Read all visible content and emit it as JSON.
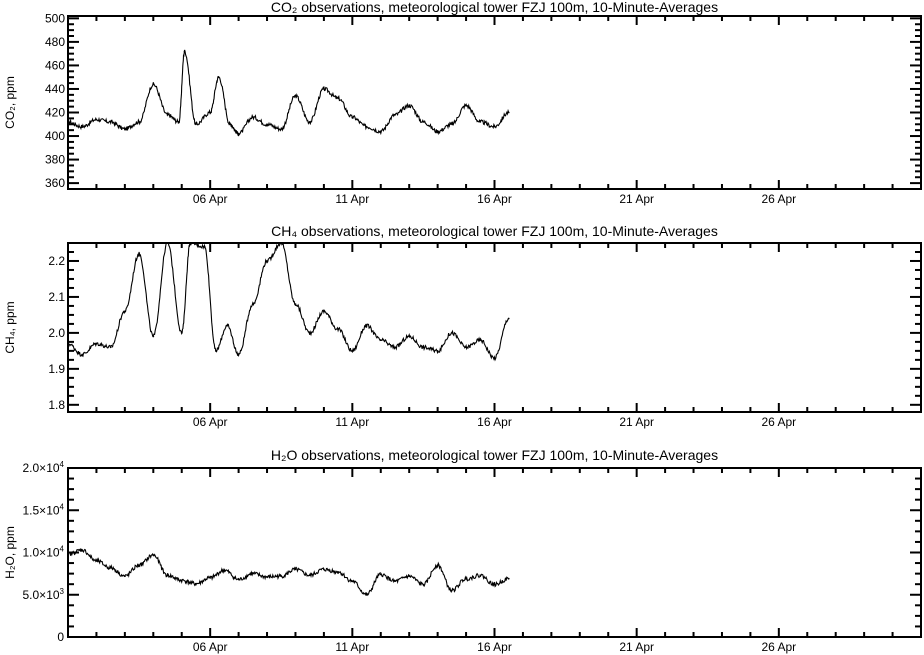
{
  "chart_data": [
    {
      "type": "line",
      "title": "CO₂ observations, meteorological tower FZJ 100m, 10-Minute-Averages",
      "ylabel": "CO₂, ppm",
      "xlabel": "",
      "x_ticks": [
        "06 Apr",
        "11 Apr",
        "16 Apr",
        "21 Apr",
        "26 Apr"
      ],
      "y_ticks": [
        "360",
        "380",
        "400",
        "420",
        "440",
        "460",
        "480",
        "500"
      ],
      "xlim_days": [
        1,
        31
      ],
      "ylim": [
        355,
        502
      ],
      "grid": false,
      "series": [
        {
          "values": [
            [
              1.0,
              412
            ],
            [
              1.5,
              408
            ],
            [
              2.0,
              414
            ],
            [
              2.5,
              412
            ],
            [
              3.0,
              406
            ],
            [
              3.5,
              412
            ],
            [
              4.0,
              444
            ],
            [
              4.5,
              418
            ],
            [
              4.9,
              412
            ],
            [
              5.1,
              472
            ],
            [
              5.5,
              410
            ],
            [
              6.0,
              420
            ],
            [
              6.3,
              450
            ],
            [
              6.7,
              410
            ],
            [
              7.0,
              402
            ],
            [
              7.5,
              416
            ],
            [
              8.0,
              410
            ],
            [
              8.5,
              406
            ],
            [
              9.0,
              434
            ],
            [
              9.5,
              412
            ],
            [
              10.0,
              440
            ],
            [
              10.5,
              432
            ],
            [
              11.0,
              416
            ],
            [
              11.5,
              408
            ],
            [
              12.0,
              404
            ],
            [
              12.5,
              418
            ],
            [
              13.0,
              426
            ],
            [
              13.5,
              412
            ],
            [
              14.0,
              404
            ],
            [
              14.5,
              410
            ],
            [
              15.0,
              426
            ],
            [
              15.5,
              412
            ],
            [
              16.0,
              408
            ],
            [
              16.5,
              420
            ]
          ]
        }
      ]
    },
    {
      "type": "line",
      "title": "CH₄ observations, meteorological tower FZJ 100m, 10-Minute-Averages",
      "ylabel": "CH₄, ppm",
      "xlabel": "",
      "x_ticks": [
        "06 Apr",
        "11 Apr",
        "16 Apr",
        "21 Apr",
        "26 Apr"
      ],
      "y_ticks": [
        "1.8",
        "1.9",
        "2.0",
        "2.1",
        "2.2"
      ],
      "xlim_days": [
        1,
        31
      ],
      "ylim": [
        1.78,
        2.25
      ],
      "grid": false,
      "series": [
        {
          "values": [
            [
              1.0,
              1.97
            ],
            [
              1.5,
              1.94
            ],
            [
              2.0,
              1.97
            ],
            [
              2.5,
              1.96
            ],
            [
              3.0,
              2.06
            ],
            [
              3.5,
              2.22
            ],
            [
              4.0,
              1.99
            ],
            [
              4.5,
              2.25
            ],
            [
              5.0,
              2.0
            ],
            [
              5.3,
              2.25
            ],
            [
              5.8,
              2.24
            ],
            [
              6.2,
              1.95
            ],
            [
              6.6,
              2.02
            ],
            [
              7.0,
              1.94
            ],
            [
              7.5,
              2.08
            ],
            [
              8.0,
              2.2
            ],
            [
              8.5,
              2.25
            ],
            [
              9.0,
              2.08
            ],
            [
              9.5,
              2.0
            ],
            [
              10.0,
              2.06
            ],
            [
              10.5,
              2.01
            ],
            [
              11.0,
              1.95
            ],
            [
              11.5,
              2.02
            ],
            [
              12.0,
              1.98
            ],
            [
              12.5,
              1.96
            ],
            [
              13.0,
              1.99
            ],
            [
              13.5,
              1.96
            ],
            [
              14.0,
              1.95
            ],
            [
              14.5,
              2.0
            ],
            [
              15.0,
              1.96
            ],
            [
              15.5,
              1.98
            ],
            [
              16.0,
              1.93
            ],
            [
              16.5,
              2.04
            ]
          ]
        }
      ]
    },
    {
      "type": "line",
      "title": "H₂O observations, meteorological tower FZJ 100m, 10-Minute-Averages",
      "ylabel": "H₂O, ppm",
      "xlabel": "",
      "x_ticks": [
        "06 Apr",
        "11 Apr",
        "16 Apr",
        "21 Apr",
        "26 Apr"
      ],
      "y_tick_values": [
        0,
        5000,
        10000,
        15000,
        20000
      ],
      "y_ticks": [
        {
          "mantissa": "0",
          "exponent": ""
        },
        {
          "mantissa": "5.0×10",
          "exponent": "3"
        },
        {
          "mantissa": "1.0×10",
          "exponent": "4"
        },
        {
          "mantissa": "1.5×10",
          "exponent": "4"
        },
        {
          "mantissa": "2.0×10",
          "exponent": "4"
        }
      ],
      "xlim_days": [
        1,
        31
      ],
      "ylim": [
        0,
        20000
      ],
      "grid": false,
      "series": [
        {
          "values": [
            [
              1.0,
              9800
            ],
            [
              1.5,
              10300
            ],
            [
              2.0,
              9000
            ],
            [
              2.5,
              8200
            ],
            [
              3.0,
              7200
            ],
            [
              3.5,
              8500
            ],
            [
              4.0,
              9700
            ],
            [
              4.5,
              7300
            ],
            [
              5.0,
              6700
            ],
            [
              5.5,
              6300
            ],
            [
              6.0,
              7000
            ],
            [
              6.5,
              7900
            ],
            [
              7.0,
              6800
            ],
            [
              7.5,
              7500
            ],
            [
              8.0,
              7100
            ],
            [
              8.5,
              7200
            ],
            [
              9.0,
              8000
            ],
            [
              9.5,
              7300
            ],
            [
              10.0,
              8000
            ],
            [
              10.5,
              7700
            ],
            [
              11.0,
              6600
            ],
            [
              11.5,
              5000
            ],
            [
              12.0,
              7400
            ],
            [
              12.5,
              6600
            ],
            [
              13.0,
              7200
            ],
            [
              13.5,
              6200
            ],
            [
              14.0,
              8500
            ],
            [
              14.5,
              5500
            ],
            [
              15.0,
              6900
            ],
            [
              15.5,
              7300
            ],
            [
              16.0,
              6200
            ],
            [
              16.5,
              6900
            ]
          ]
        }
      ]
    }
  ]
}
